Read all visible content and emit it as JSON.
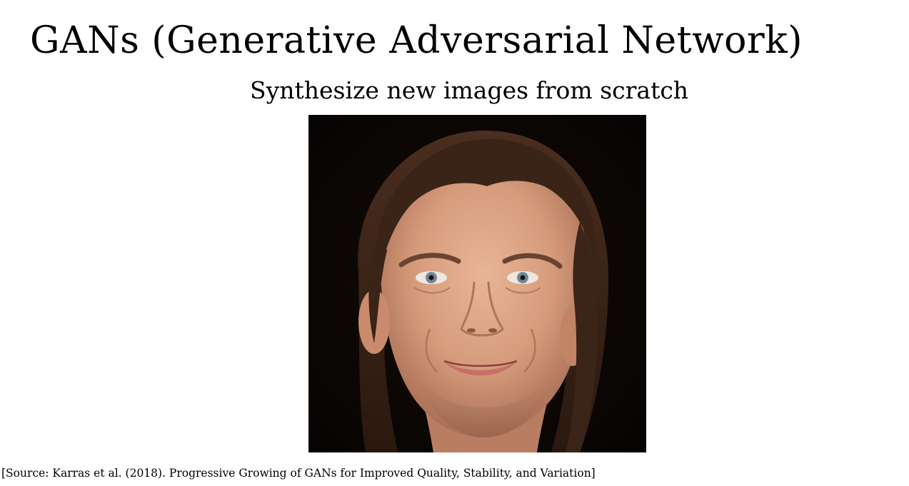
{
  "slide": {
    "title": "GANs (Generative Adversarial Network)",
    "subtitle": "Synthesize new images from scratch",
    "source_citation": "[Source: Karras et al. (2018). Progressive Growing of GANs for Improved Quality, Stability, and Variation]"
  },
  "figure": {
    "content": "GAN-synthesized face photograph",
    "background_color": "#0b0706",
    "skin_color": "#d9a282",
    "hair_color": "#3b2418"
  }
}
